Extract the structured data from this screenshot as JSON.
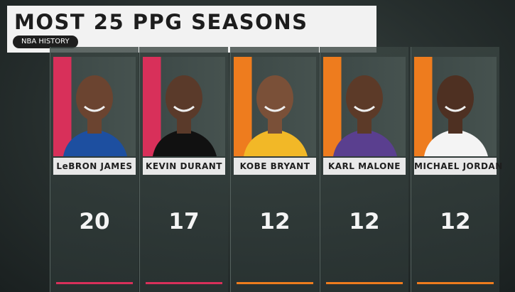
{
  "header": {
    "title": "MOST 25 PPG SEASONS",
    "subtitle": "NBA HISTORY"
  },
  "players": [
    {
      "name": "LeBRON JAMES",
      "seasons": 20
    },
    {
      "name": "KEVIN DURANT",
      "seasons": 17
    },
    {
      "name": "KOBE BRYANT",
      "seasons": 12
    },
    {
      "name": "KARL MALONE",
      "seasons": 12
    },
    {
      "name": "MICHAEL JORDAN",
      "seasons": 12
    }
  ]
}
